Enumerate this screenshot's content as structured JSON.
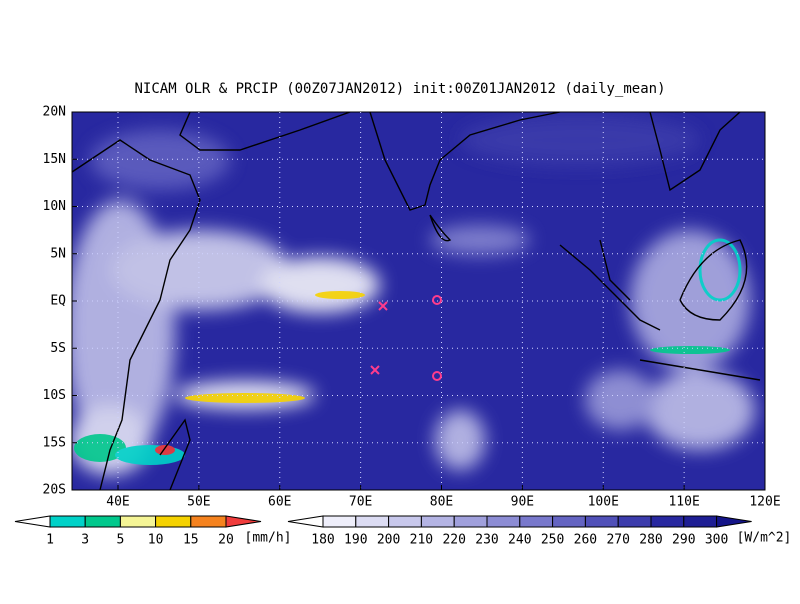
{
  "title": "NICAM OLR & PRCIP (00Z07JAN2012) init:00Z01JAN2012 (daily_mean)",
  "lat_labels": [
    "20N",
    "15N",
    "10N",
    "5N",
    "EQ",
    "5S",
    "10S",
    "15S",
    "20S"
  ],
  "lon_labels": [
    "40E",
    "50E",
    "60E",
    "70E",
    "80E",
    "90E",
    "100E",
    "110E",
    "120E"
  ],
  "precip_colorbar": {
    "labels": [
      "1",
      "3",
      "5",
      "10",
      "15",
      "20"
    ],
    "unit": "[mm/h]",
    "colors": [
      "#ffffff",
      "#00d2c8",
      "#00c88c",
      "#f5f596",
      "#f5d200",
      "#f5821e",
      "#f03c3c"
    ]
  },
  "olr_colorbar": {
    "labels": [
      "180",
      "190",
      "200",
      "210",
      "220",
      "230",
      "240",
      "250",
      "260",
      "270",
      "280",
      "290",
      "300"
    ],
    "unit": "[W/m^2]",
    "colors": [
      "#ffffff",
      "#eeeefa",
      "#dcdcf3",
      "#c8c8ec",
      "#b4b4e4",
      "#a0a0dc",
      "#8c8cd4",
      "#7878cc",
      "#6464c2",
      "#5050b8",
      "#3c3cac",
      "#2828a0",
      "#1e1e94",
      "#141488"
    ]
  }
}
